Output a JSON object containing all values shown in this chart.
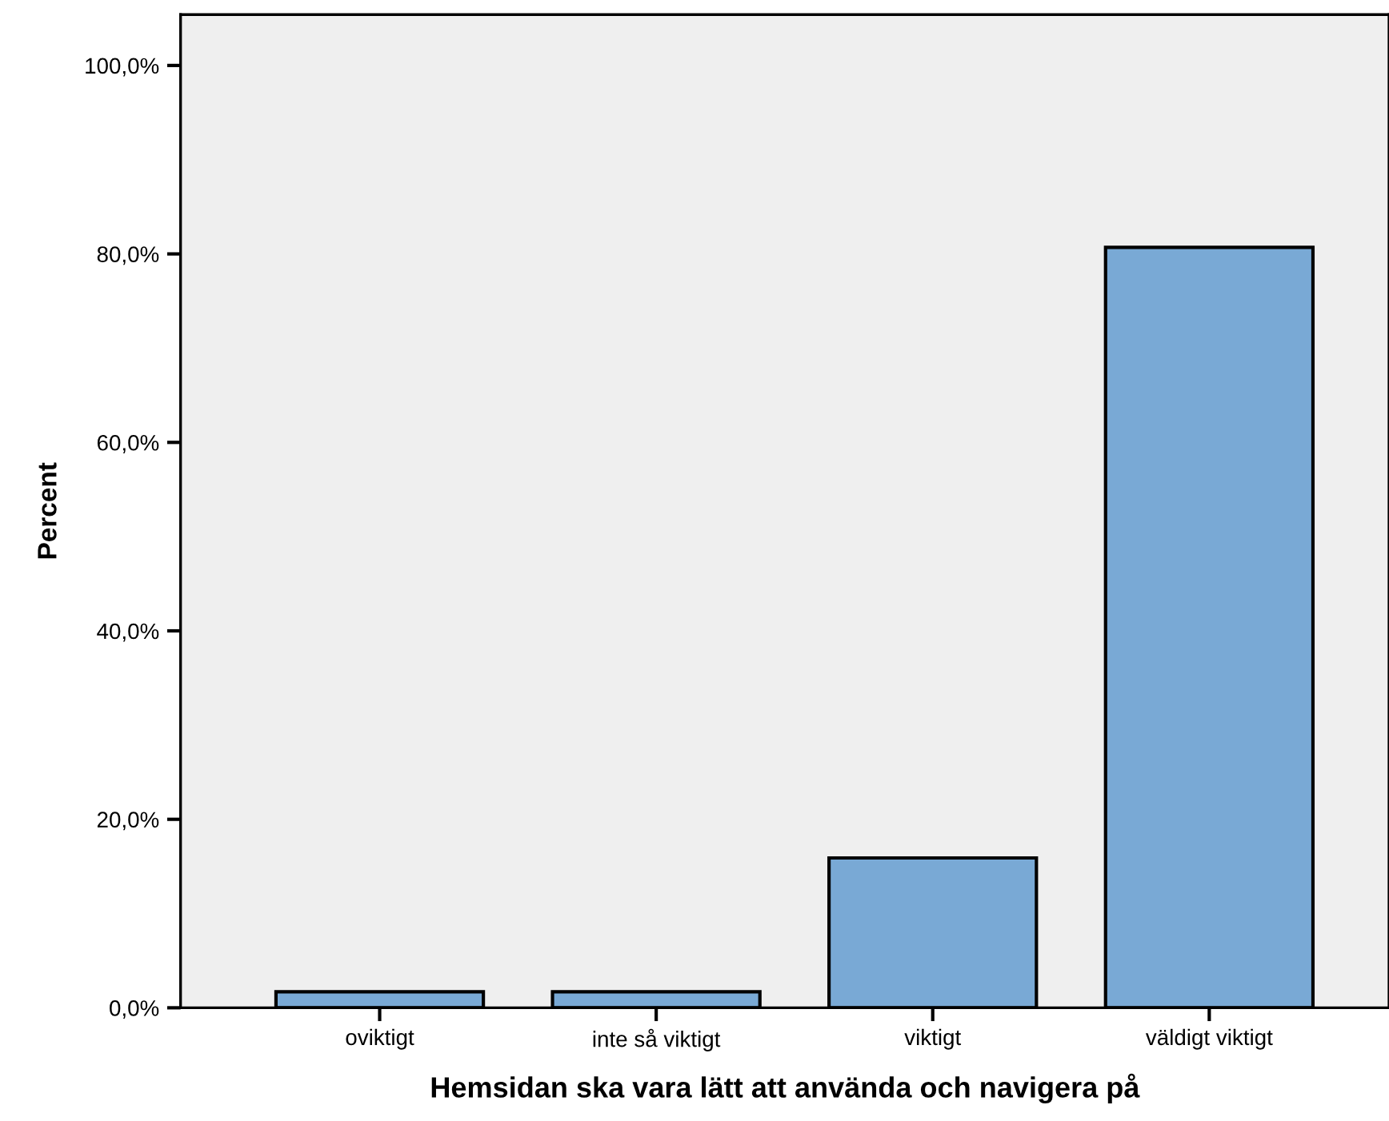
{
  "chart_data": {
    "type": "bar",
    "xlabel": "Hemsidan ska vara lätt att använda och navigera på",
    "ylabel": "Percent",
    "categories": [
      "oviktigt",
      "inte så viktigt",
      "viktigt",
      "väldigt viktigt"
    ],
    "values": [
      1.7,
      1.7,
      15.9,
      80.7
    ],
    "color": "#79a9d5",
    "ylim": [
      0,
      105.4
    ],
    "yticks": [
      {
        "value": 0,
        "label": "0,0%"
      },
      {
        "value": 20,
        "label": "20,0%"
      },
      {
        "value": 40,
        "label": "40,0%"
      },
      {
        "value": 60,
        "label": "60,0%"
      },
      {
        "value": 80,
        "label": "80,0%"
      },
      {
        "value": 100,
        "label": "100,0%"
      }
    ],
    "grid": false,
    "legend": false
  }
}
